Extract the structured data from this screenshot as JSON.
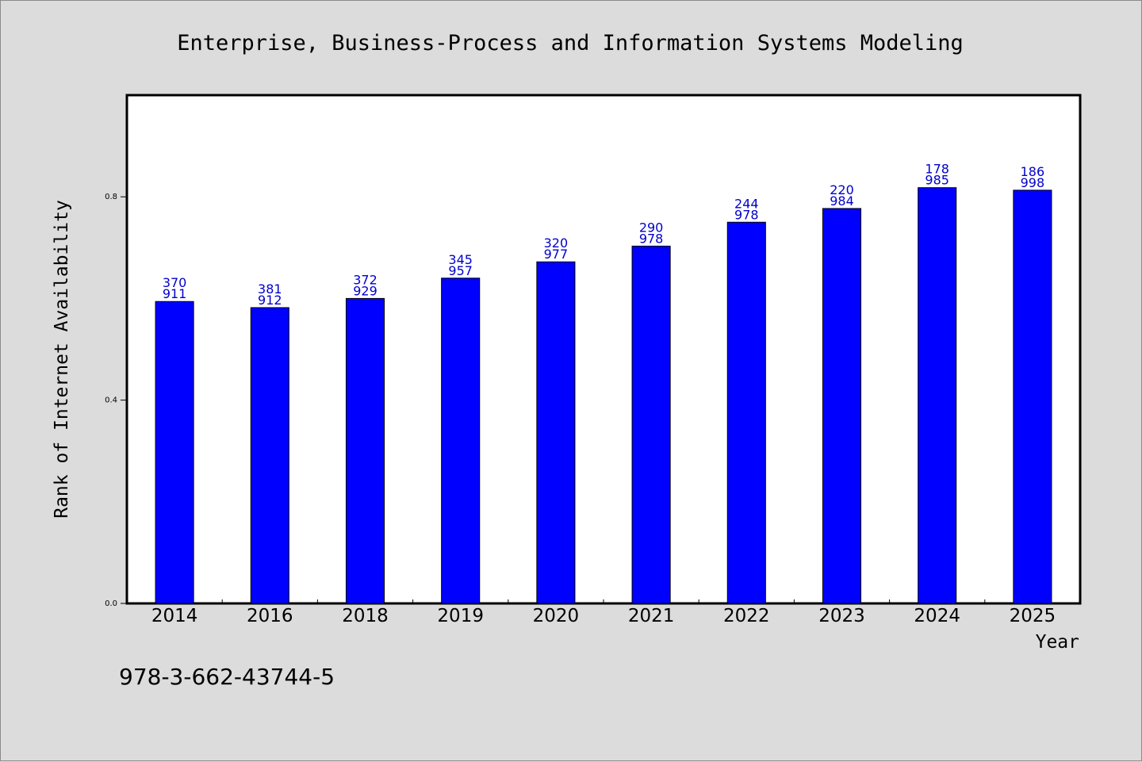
{
  "chart_data": {
    "type": "bar",
    "title": "Enterprise, Business-Process and Information Systems Modeling",
    "xlabel": "Year",
    "ylabel": "Rank of Internet Availability",
    "footnote": "978-3-662-43744-5",
    "categories": [
      "2014",
      "2016",
      "2018",
      "2019",
      "2020",
      "2021",
      "2022",
      "2023",
      "2024",
      "2025"
    ],
    "values": [
      0.594,
      0.582,
      0.6,
      0.64,
      0.672,
      0.703,
      0.75,
      0.777,
      0.818,
      0.813
    ],
    "labels": [
      [
        "370",
        "911"
      ],
      [
        "381",
        "912"
      ],
      [
        "372",
        "929"
      ],
      [
        "345",
        "957"
      ],
      [
        "320",
        "977"
      ],
      [
        "290",
        "978"
      ],
      [
        "244",
        "978"
      ],
      [
        "220",
        "984"
      ],
      [
        "178",
        "985"
      ],
      [
        "186",
        "998"
      ]
    ],
    "yticks": [
      "0.0",
      "0.4",
      "0.8"
    ],
    "ytick_values": [
      0.0,
      0.4,
      0.8
    ],
    "ylim": [
      0,
      1.0
    ],
    "grid": false,
    "legend": "none",
    "colors": {
      "bar": "#0000ff",
      "bar_edge": "#000000",
      "label": "#0000cc",
      "background": "#dcdcdc",
      "plot_background": "#ffffff"
    }
  }
}
